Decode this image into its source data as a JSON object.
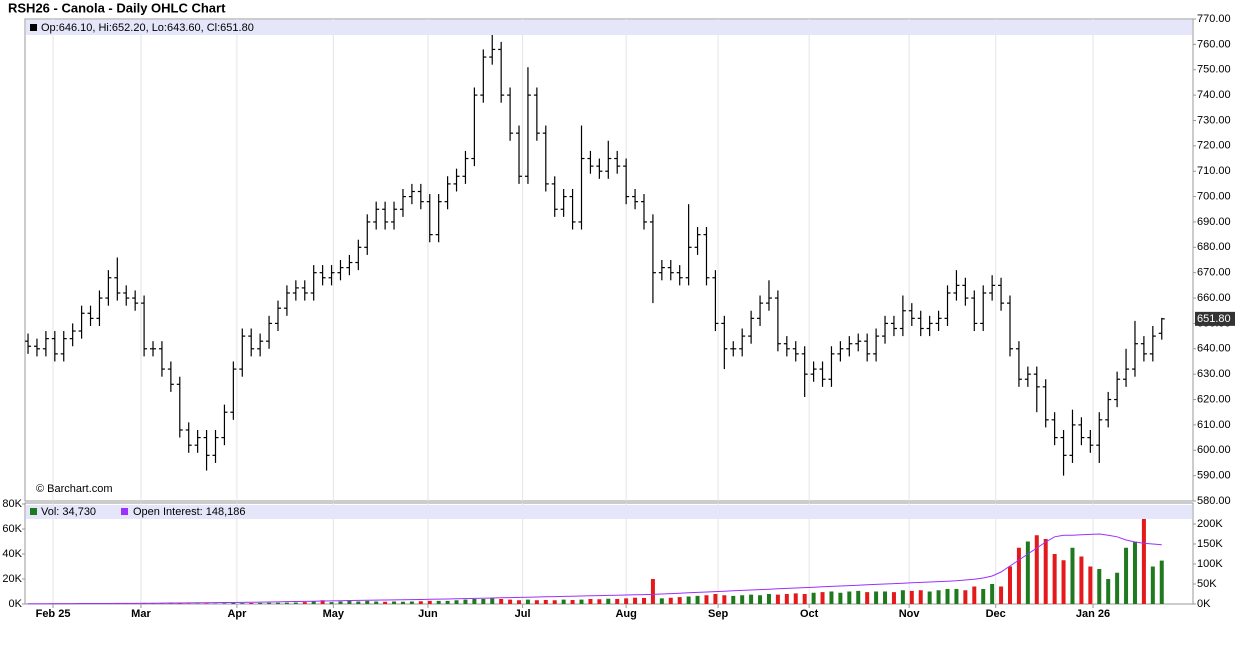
{
  "chart_data": [
    {
      "type": "ohlc",
      "title": "RSH26 - Canola - Daily OHLC Chart",
      "legend_text": "Op:646.10, Hi:652.20, Lo:643.60, Cl:651.80",
      "close_label": "651.80",
      "watermark": "© Barchart.com",
      "color": "#000000",
      "grid": "x",
      "xlim": [
        -0.34,
        130.5
      ],
      "xticks": [
        {
          "value": 2.8,
          "label": "Feb 25"
        },
        {
          "value": 12.65,
          "label": "Mar"
        },
        {
          "value": 23.4,
          "label": "Apr"
        },
        {
          "value": 34.2,
          "label": "May"
        },
        {
          "value": 44.8,
          "label": "Jun"
        },
        {
          "value": 55.4,
          "label": "Jul"
        },
        {
          "value": 67.0,
          "label": "Aug"
        },
        {
          "value": 77.3,
          "label": "Sep"
        },
        {
          "value": 87.5,
          "label": "Oct"
        },
        {
          "value": 98.7,
          "label": "Nov"
        },
        {
          "value": 108.4,
          "label": "Dec"
        },
        {
          "value": 119.3,
          "label": "Jan 26"
        }
      ],
      "ylim": [
        580,
        770
      ],
      "yticks": [
        {
          "value": 580,
          "label": "580.00"
        },
        {
          "value": 590,
          "label": "590.00"
        },
        {
          "value": 600,
          "label": "600.00"
        },
        {
          "value": 610,
          "label": "610.00"
        },
        {
          "value": 620,
          "label": "620.00"
        },
        {
          "value": 630,
          "label": "630.00"
        },
        {
          "value": 640,
          "label": "640.00"
        },
        {
          "value": 650,
          "label": "650.00"
        },
        {
          "value": 660,
          "label": "660.00"
        },
        {
          "value": 670,
          "label": "670.00"
        },
        {
          "value": 680,
          "label": "680.00"
        },
        {
          "value": 690,
          "label": "690.00"
        },
        {
          "value": 700,
          "label": "700.00"
        },
        {
          "value": 710,
          "label": "710.00"
        },
        {
          "value": 720,
          "label": "720.00"
        },
        {
          "value": 730,
          "label": "730.00"
        },
        {
          "value": 740,
          "label": "740.00"
        },
        {
          "value": 750,
          "label": "750.00"
        },
        {
          "value": 760,
          "label": "760.00"
        },
        {
          "value": 770,
          "label": "770.00"
        }
      ],
      "open": [
        643,
        641,
        640,
        644,
        638,
        644,
        647,
        654,
        652,
        660,
        668,
        662,
        660,
        658,
        640,
        640,
        632,
        626,
        608,
        602,
        605,
        598,
        605,
        615,
        632,
        645,
        640,
        643,
        650,
        656,
        662,
        664,
        662,
        670,
        668,
        670,
        672,
        674,
        680,
        690,
        695,
        690,
        695,
        700,
        702,
        698,
        685,
        698,
        705,
        708,
        715,
        740,
        755,
        758,
        740,
        725,
        708,
        740,
        725,
        705,
        695,
        700,
        690,
        715,
        712,
        710,
        715,
        712,
        700,
        698,
        690,
        670,
        672,
        670,
        668,
        680,
        685,
        668,
        650,
        640,
        640,
        645,
        652,
        658,
        660,
        642,
        640,
        638,
        630,
        632,
        628,
        638,
        640,
        642,
        643,
        638,
        645,
        650,
        648,
        655,
        652,
        648,
        650,
        652,
        662,
        665,
        660,
        650,
        662,
        665,
        658,
        640,
        628,
        630,
        625,
        612,
        605,
        598,
        610,
        605,
        602,
        612,
        620,
        628,
        632,
        642,
        638,
        646.1
      ],
      "high": [
        646,
        644,
        647,
        647,
        647,
        650,
        657,
        657,
        663,
        671,
        676,
        665,
        663,
        661,
        643,
        643,
        635,
        629,
        611,
        608,
        608,
        608,
        618,
        635,
        648,
        648,
        646,
        653,
        659,
        665,
        667,
        667,
        673,
        673,
        673,
        675,
        677,
        683,
        693,
        698,
        698,
        698,
        703,
        705,
        705,
        701,
        701,
        708,
        711,
        718,
        743,
        758,
        764,
        761,
        743,
        728,
        751,
        743,
        728,
        708,
        703,
        703,
        728,
        718,
        715,
        722,
        718,
        715,
        703,
        701,
        693,
        675,
        675,
        673,
        697,
        688,
        688,
        671,
        653,
        643,
        648,
        655,
        661,
        667,
        663,
        645,
        643,
        641,
        635,
        635,
        641,
        643,
        645,
        646,
        646,
        648,
        653,
        653,
        661,
        658,
        655,
        653,
        655,
        665,
        671,
        668,
        663,
        665,
        669,
        668,
        661,
        643,
        633,
        633,
        628,
        615,
        608,
        616,
        613,
        608,
        615,
        623,
        631,
        640,
        651,
        645,
        649,
        652.2
      ],
      "low": [
        638,
        637,
        637,
        635,
        635,
        641,
        644,
        649,
        649,
        657,
        659,
        657,
        655,
        637,
        637,
        629,
        623,
        605,
        599,
        599,
        592,
        595,
        602,
        612,
        629,
        637,
        637,
        640,
        647,
        653,
        659,
        659,
        659,
        665,
        665,
        667,
        669,
        671,
        677,
        687,
        687,
        687,
        692,
        697,
        695,
        682,
        682,
        695,
        702,
        705,
        712,
        737,
        752,
        737,
        722,
        705,
        705,
        722,
        702,
        692,
        692,
        687,
        687,
        709,
        707,
        707,
        709,
        697,
        695,
        687,
        658,
        667,
        667,
        665,
        665,
        677,
        665,
        647,
        632,
        637,
        637,
        642,
        649,
        655,
        639,
        637,
        635,
        621,
        627,
        625,
        625,
        635,
        637,
        639,
        635,
        635,
        642,
        645,
        645,
        649,
        645,
        645,
        647,
        649,
        659,
        657,
        647,
        647,
        659,
        655,
        637,
        625,
        625,
        615,
        609,
        602,
        590,
        595,
        602,
        599,
        595,
        609,
        617,
        625,
        629,
        635,
        635,
        643.6
      ],
      "close": [
        641,
        640,
        644,
        638,
        644,
        647,
        654,
        652,
        660,
        668,
        662,
        660,
        658,
        640,
        640,
        632,
        626,
        608,
        602,
        605,
        598,
        605,
        615,
        632,
        645,
        640,
        643,
        650,
        656,
        662,
        664,
        662,
        670,
        668,
        670,
        672,
        674,
        680,
        690,
        695,
        690,
        695,
        700,
        702,
        698,
        685,
        698,
        705,
        708,
        715,
        740,
        755,
        758,
        740,
        725,
        708,
        740,
        725,
        705,
        695,
        700,
        690,
        715,
        712,
        710,
        715,
        712,
        700,
        698,
        690,
        670,
        672,
        670,
        668,
        680,
        685,
        668,
        650,
        640,
        640,
        645,
        652,
        658,
        660,
        642,
        640,
        638,
        630,
        632,
        628,
        638,
        640,
        642,
        643,
        638,
        645,
        650,
        648,
        655,
        652,
        648,
        650,
        652,
        662,
        665,
        660,
        650,
        662,
        665,
        658,
        640,
        628,
        630,
        625,
        612,
        605,
        598,
        610,
        605,
        602,
        612,
        620,
        628,
        632,
        642,
        638,
        645,
        651.8
      ]
    },
    {
      "type": "volume",
      "volume_legend": "Vol: 34,730",
      "oi_legend": "Open Interest: 148,186",
      "up_color": "#1f7a1f",
      "down_color": "#e3191c",
      "oi_color": "#9b30ff",
      "ylim": [
        0,
        80000
      ],
      "yticks": [
        {
          "value": 0,
          "label": "0K"
        },
        {
          "value": 20000,
          "label": "20K"
        },
        {
          "value": 40000,
          "label": "40K"
        },
        {
          "value": 60000,
          "label": "60K"
        },
        {
          "value": 80000,
          "label": "80K"
        }
      ],
      "y2lim": [
        0,
        250000
      ],
      "y2ticks": [
        {
          "value": 0,
          "label": "0K"
        },
        {
          "value": 50000,
          "label": "50K"
        },
        {
          "value": 100000,
          "label": "100K"
        },
        {
          "value": 150000,
          "label": "150K"
        },
        {
          "value": 200000,
          "label": "200K"
        }
      ],
      "volume": [
        200,
        200,
        300,
        200,
        300,
        200,
        300,
        300,
        200,
        400,
        300,
        300,
        200,
        300,
        300,
        200,
        300,
        400,
        300,
        400,
        500,
        400,
        600,
        800,
        700,
        800,
        900,
        1000,
        1000,
        1100,
        1200,
        1500,
        2000,
        3000,
        1500,
        2000,
        2500,
        2000,
        2500,
        2000,
        1800,
        2000,
        1800,
        2000,
        2200,
        2500,
        2500,
        2500,
        3000,
        3500,
        4000,
        4000,
        4500,
        4000,
        3500,
        3000,
        3500,
        3000,
        3200,
        3000,
        3500,
        3200,
        3500,
        4000,
        3800,
        4200,
        4000,
        4500,
        5000,
        4800,
        20000,
        4500,
        5000,
        5500,
        6000,
        6500,
        7000,
        8000,
        7000,
        6500,
        7000,
        7500,
        7000,
        8000,
        7500,
        8000,
        8500,
        8000,
        9000,
        9500,
        10000,
        9000,
        10000,
        10500,
        9500,
        10000,
        10000,
        9500,
        11000,
        10500,
        11000,
        10000,
        11000,
        12000,
        12000,
        11000,
        14000,
        12000,
        16000,
        14000,
        30000,
        45000,
        50000,
        55000,
        52000,
        40000,
        35000,
        45000,
        38000,
        30000,
        28000,
        20000,
        25000,
        45000,
        50000,
        70000,
        30000,
        34730
      ],
      "open_interest": [
        500,
        600,
        700,
        800,
        900,
        1000,
        1100,
        1200,
        1300,
        1400,
        1500,
        1600,
        1700,
        1800,
        2000,
        2200,
        2400,
        2600,
        2800,
        3000,
        3200,
        3400,
        3600,
        3800,
        4000,
        4300,
        4600,
        5000,
        5400,
        5800,
        6200,
        6600,
        7000,
        7400,
        7800,
        8200,
        8600,
        9000,
        9400,
        9800,
        10000,
        10300,
        10600,
        11000,
        11400,
        11800,
        12200,
        12600,
        13000,
        13500,
        14000,
        14500,
        15000,
        15500,
        16000,
        16500,
        17000,
        17500,
        18000,
        18500,
        19000,
        19500,
        20000,
        20500,
        21000,
        21500,
        22000,
        22500,
        23000,
        23500,
        24000,
        25000,
        26000,
        27000,
        28000,
        29000,
        30000,
        31000,
        32000,
        33000,
        34000,
        35000,
        36000,
        37000,
        38000,
        39000,
        40000,
        41000,
        42000,
        43000,
        44000,
        45000,
        46000,
        47000,
        48000,
        49000,
        50000,
        51000,
        52000,
        53000,
        54000,
        55000,
        56000,
        57000,
        58000,
        60000,
        62000,
        65000,
        70000,
        80000,
        95000,
        110000,
        125000,
        140000,
        155000,
        168000,
        172000,
        172000,
        173000,
        174000,
        175000,
        172000,
        168000,
        160000,
        155000,
        152000,
        150000,
        148186
      ]
    }
  ]
}
